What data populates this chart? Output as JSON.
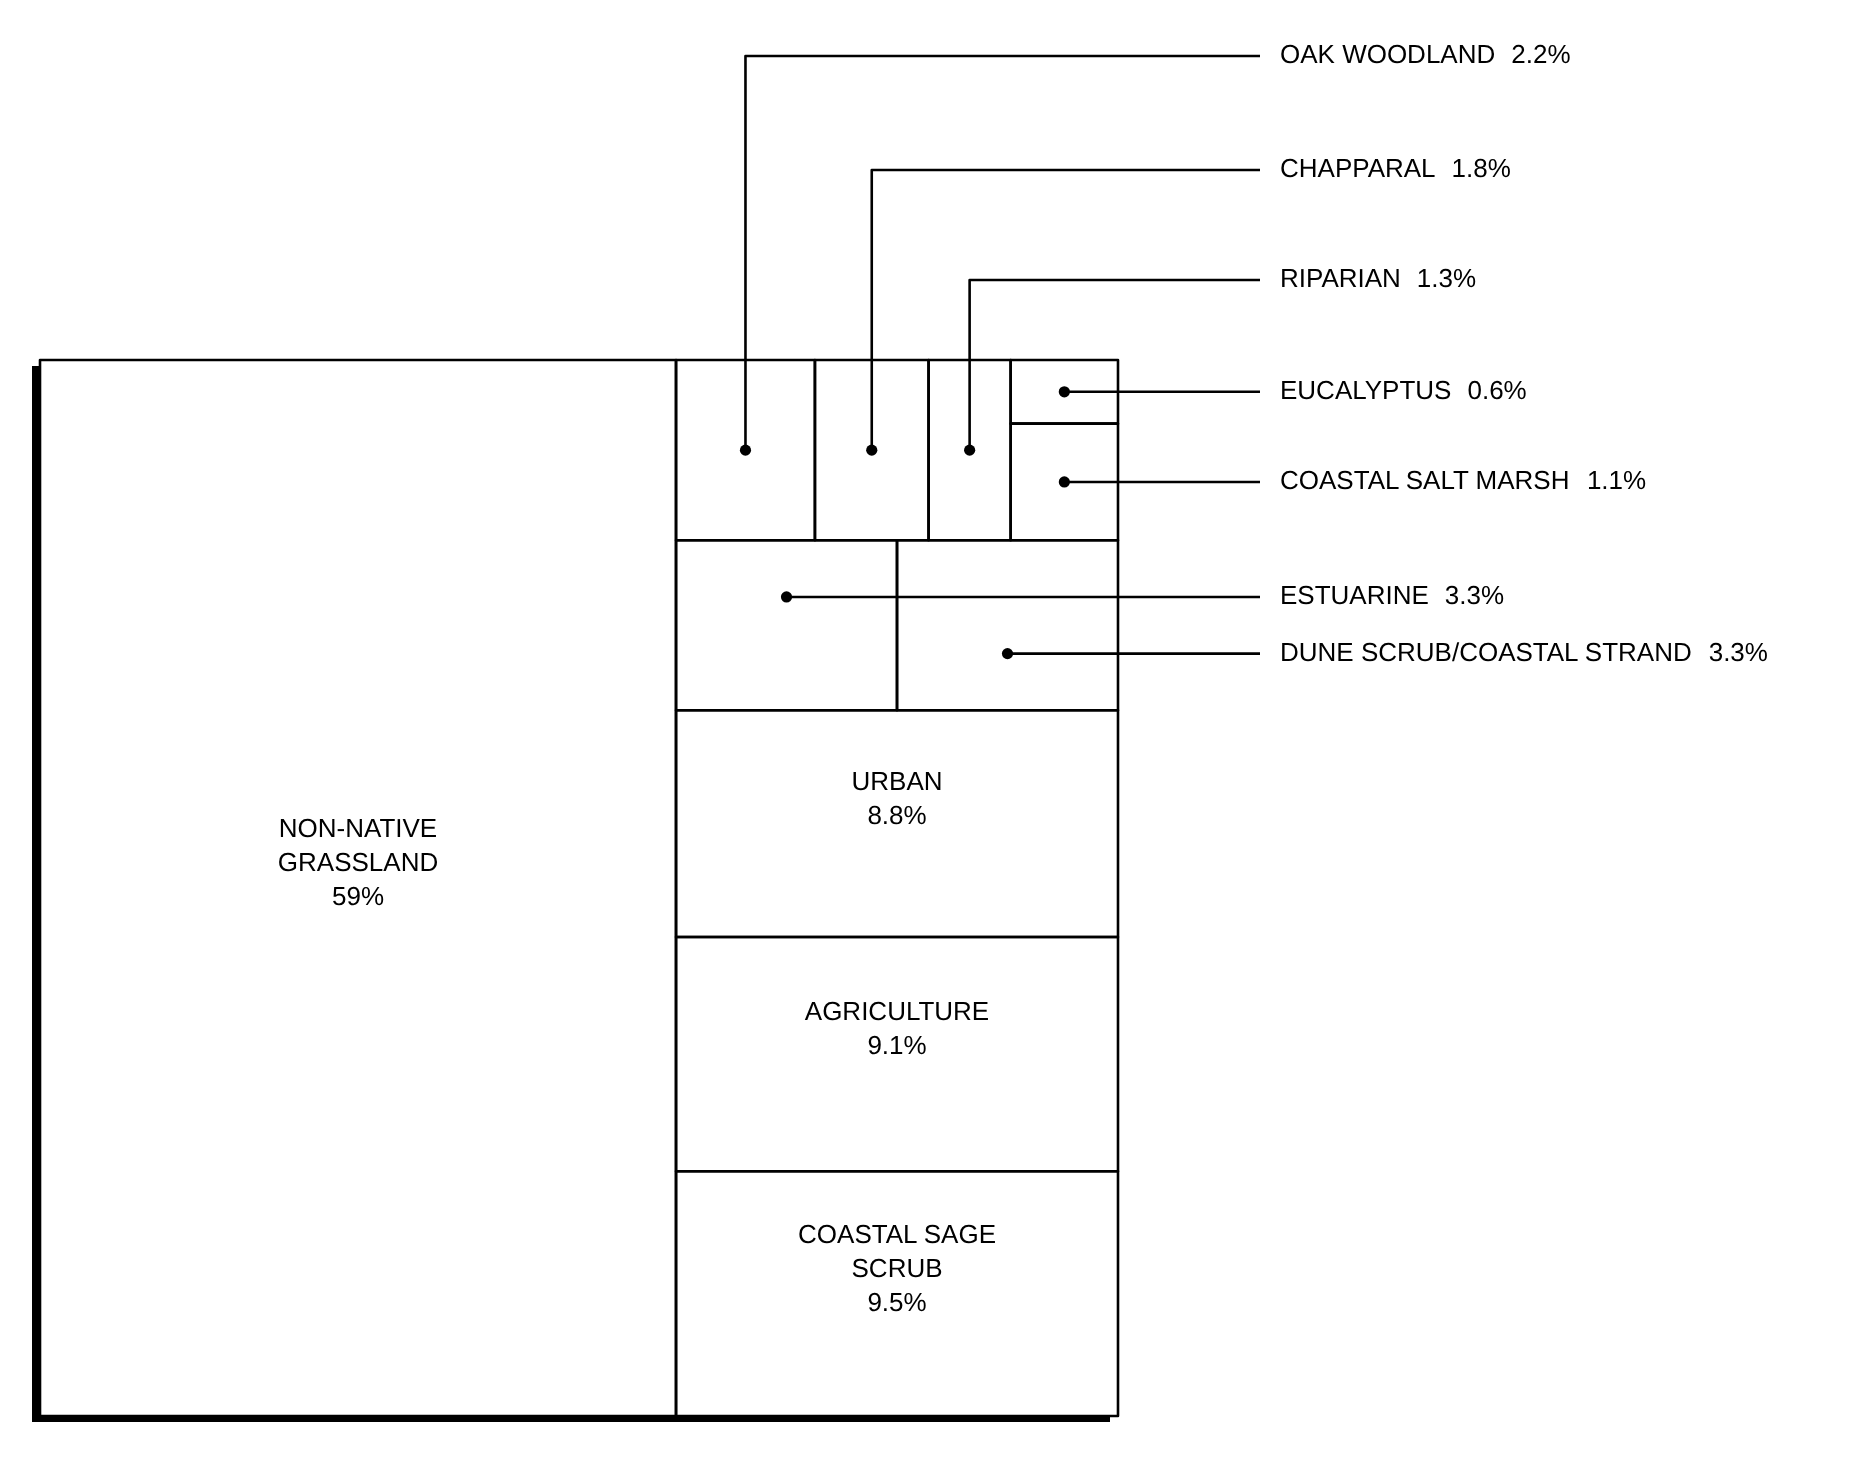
{
  "chart_data": {
    "type": "other",
    "categories": [
      "NON-NATIVE GRASSLAND",
      "COASTAL SAGE SCRUB",
      "AGRICULTURE",
      "URBAN",
      "ESTUARINE",
      "DUNE SCRUB/COASTAL STRAND",
      "OAK WOODLAND",
      "CHAPPARAL",
      "RIPARIAN",
      "EUCALYPTUS",
      "COASTAL SALT MARSH"
    ],
    "values": [
      59,
      9.5,
      9.1,
      8.8,
      3.3,
      3.3,
      2.2,
      1.8,
      1.3,
      0.6,
      1.1
    ],
    "value_labels": [
      "59%",
      "9.5%",
      "9.1%",
      "8.8%",
      "3.3%",
      "3.3%",
      "2.2%",
      "1.8%",
      "1.3%",
      "0.6%",
      "1.1%"
    ]
  }
}
